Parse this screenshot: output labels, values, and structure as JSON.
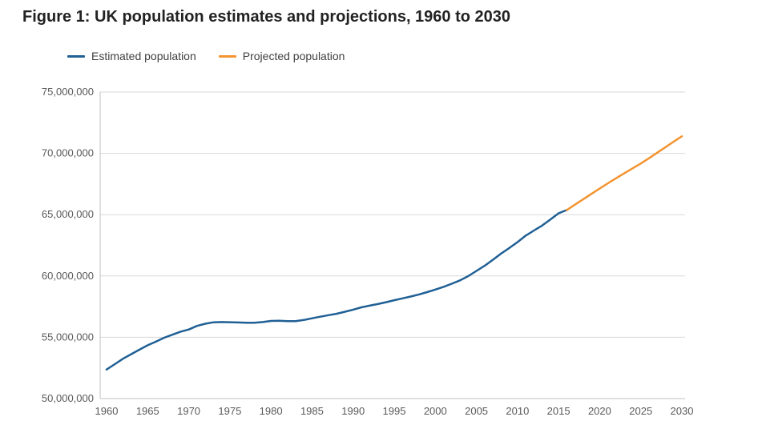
{
  "figure": {
    "title": "Figure 1: UK population estimates and projections, 1960 to 2030"
  },
  "legend": [
    {
      "label": "Estimated population",
      "color": "#206095"
    },
    {
      "label": "Projected population",
      "color": "#f39431"
    }
  ],
  "colors": {
    "estimated_line": "#206095",
    "projected_line": "#f39431",
    "gridline": "#d9d9d9",
    "axis_line": "#c0c0c0",
    "tick_label": "#595959",
    "title_text": "#222222"
  },
  "chart_data": {
    "type": "line",
    "title": "Figure 1: UK population estimates and projections, 1960 to 2030",
    "xlabel": "",
    "ylabel": "",
    "xlim": [
      1960,
      2030
    ],
    "ylim": [
      50000000,
      75000000
    ],
    "grid": "horizontal",
    "legend_position": "top",
    "x_ticks": [
      1960,
      1965,
      1970,
      1975,
      1980,
      1985,
      1990,
      1995,
      2000,
      2005,
      2010,
      2015,
      2020,
      2025,
      2030
    ],
    "y_ticks": [
      50000000,
      55000000,
      60000000,
      65000000,
      70000000,
      75000000
    ],
    "y_tick_labels": [
      "50,000,000",
      "55,000,000",
      "60,000,000",
      "65,000,000",
      "70,000,000",
      "75,000,000"
    ],
    "series": [
      {
        "name": "Estimated population",
        "color": "#206095",
        "x": [
          1960,
          1961,
          1962,
          1963,
          1964,
          1965,
          1966,
          1967,
          1968,
          1969,
          1970,
          1971,
          1972,
          1973,
          1974,
          1975,
          1976,
          1977,
          1978,
          1979,
          1980,
          1981,
          1982,
          1983,
          1984,
          1985,
          1986,
          1987,
          1988,
          1989,
          1990,
          1991,
          1992,
          1993,
          1994,
          1995,
          1996,
          1997,
          1998,
          1999,
          2000,
          2001,
          2002,
          2003,
          2004,
          2005,
          2006,
          2007,
          2008,
          2009,
          2010,
          2011,
          2012,
          2013,
          2014,
          2015,
          2016
        ],
        "values": [
          52370000,
          52810000,
          53250000,
          53620000,
          53990000,
          54350000,
          54640000,
          54960000,
          55210000,
          55460000,
          55630000,
          55930000,
          56100000,
          56220000,
          56240000,
          56230000,
          56210000,
          56190000,
          56180000,
          56240000,
          56330000,
          56350000,
          56310000,
          56320000,
          56410000,
          56550000,
          56680000,
          56800000,
          56920000,
          57080000,
          57250000,
          57440000,
          57580000,
          57710000,
          57860000,
          58020000,
          58170000,
          58320000,
          58490000,
          58680000,
          58890000,
          59110000,
          59370000,
          59640000,
          59990000,
          60410000,
          60830000,
          61320000,
          61820000,
          62280000,
          62760000,
          63290000,
          63710000,
          64110000,
          64600000,
          65110000,
          65380000
        ]
      },
      {
        "name": "Projected population",
        "color": "#f39431",
        "x": [
          2016,
          2017,
          2018,
          2019,
          2020,
          2021,
          2022,
          2023,
          2024,
          2025,
          2026,
          2027,
          2028,
          2029,
          2030
        ],
        "values": [
          65380000,
          65820000,
          66260000,
          66700000,
          67130000,
          67560000,
          67970000,
          68380000,
          68780000,
          69170000,
          69600000,
          70050000,
          70500000,
          70950000,
          71390000
        ]
      }
    ]
  }
}
